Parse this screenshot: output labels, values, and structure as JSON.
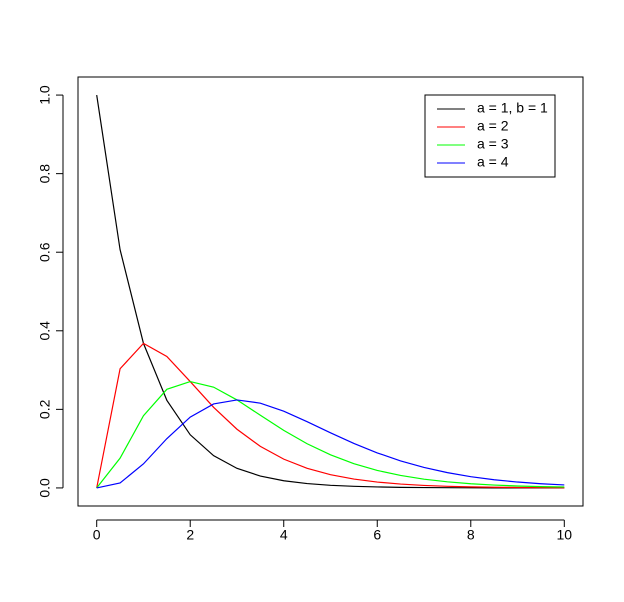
{
  "chart_data": {
    "type": "line",
    "x": [
      0,
      0.5,
      1,
      1.5,
      2,
      2.5,
      3,
      3.5,
      4,
      4.5,
      5,
      5.5,
      6,
      6.5,
      7,
      7.5,
      8,
      8.5,
      9,
      9.5,
      10
    ],
    "series": [
      {
        "name": "a = 1, b = 1",
        "color": "#000000",
        "values": [
          1,
          0.6065,
          0.3679,
          0.2231,
          0.1353,
          0.0821,
          0.0498,
          0.0302,
          0.0183,
          0.0111,
          0.0067,
          0.0041,
          0.0025,
          0.0015,
          0.0009,
          0.0006,
          0.0003,
          0.0002,
          0.0001,
          0.0001,
          0
        ]
      },
      {
        "name": "a = 2",
        "color": "#ff0000",
        "values": [
          0,
          0.3033,
          0.3679,
          0.3347,
          0.2707,
          0.2052,
          0.1494,
          0.1057,
          0.0733,
          0.05,
          0.0337,
          0.0225,
          0.0149,
          0.0098,
          0.0064,
          0.0041,
          0.0027,
          0.0017,
          0.0011,
          0.0007,
          0.0005
        ]
      },
      {
        "name": "a = 3",
        "color": "#00ff00",
        "values": [
          0,
          0.0758,
          0.1839,
          0.251,
          0.2707,
          0.2565,
          0.224,
          0.185,
          0.1465,
          0.1125,
          0.0842,
          0.0618,
          0.0446,
          0.0318,
          0.0223,
          0.0156,
          0.0107,
          0.0073,
          0.005,
          0.0034,
          0.0023
        ]
      },
      {
        "name": "a = 4",
        "color": "#0000ff",
        "values": [
          0,
          0.0126,
          0.0613,
          0.1255,
          0.1804,
          0.2138,
          0.224,
          0.2158,
          0.1954,
          0.1687,
          0.1404,
          0.1133,
          0.0892,
          0.0688,
          0.0521,
          0.0389,
          0.0286,
          0.0208,
          0.015,
          0.0107,
          0.0076
        ]
      }
    ],
    "xlim": [
      -0.4,
      10.4
    ],
    "ylim": [
      -0.046,
      1.046
    ],
    "xticks": [
      0,
      2,
      4,
      6,
      8,
      10
    ],
    "yticks": [
      {
        "value": 0,
        "label": "0.0"
      },
      0.2,
      0.4,
      0.6,
      0.8,
      {
        "value": 1,
        "label": "1.0"
      }
    ],
    "legend": "top-right"
  }
}
